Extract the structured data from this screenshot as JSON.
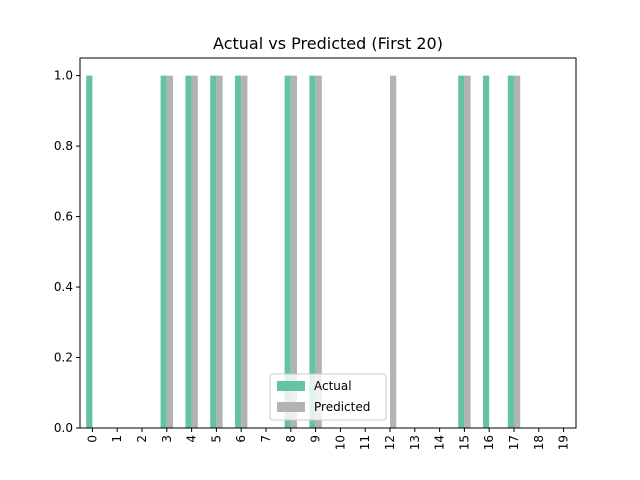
{
  "chart_data": {
    "type": "bar",
    "title": "Actual vs Predicted (First 20)",
    "xlabel": "",
    "ylabel": "",
    "categories": [
      "0",
      "1",
      "2",
      "3",
      "4",
      "5",
      "6",
      "7",
      "8",
      "9",
      "10",
      "11",
      "12",
      "13",
      "14",
      "15",
      "16",
      "17",
      "18",
      "19"
    ],
    "series": [
      {
        "name": "Actual",
        "color": "#66c2a5",
        "values": [
          1,
          0,
          0,
          1,
          1,
          1,
          1,
          0,
          1,
          1,
          0,
          0,
          0,
          0,
          0,
          1,
          1,
          1,
          0,
          0
        ]
      },
      {
        "name": "Predicted",
        "color": "#b3b3b3",
        "values": [
          0,
          0,
          0,
          1,
          1,
          1,
          1,
          0,
          1,
          1,
          0,
          0,
          1,
          0,
          0,
          1,
          0,
          1,
          0,
          0
        ]
      }
    ],
    "ylim": [
      0,
      1.05
    ],
    "yticks": [
      0.0,
      0.2,
      0.4,
      0.6,
      0.8,
      1.0
    ],
    "ytick_labels": [
      "0.0",
      "0.2",
      "0.4",
      "0.6",
      "0.8",
      "1.0"
    ],
    "grid": false,
    "legend": "lower-center"
  }
}
